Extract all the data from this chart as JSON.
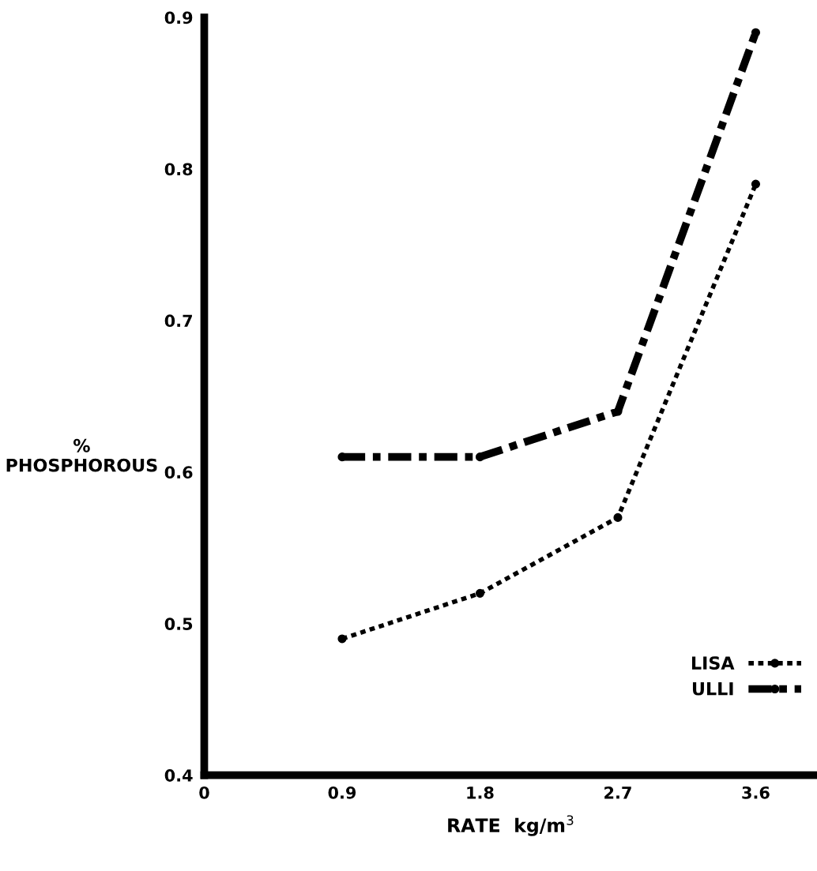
{
  "chart_data": {
    "type": "line",
    "xlabel": "RATE  kg/m$^{3}$",
    "ylabel": "%\nPHOSPHOROUS",
    "x": [
      0.9,
      1.8,
      2.7,
      3.6
    ],
    "xlim": [
      0,
      4.0
    ],
    "xticks": [
      0,
      0.9,
      1.8,
      2.7,
      3.6
    ],
    "ylim": [
      0.4,
      0.9
    ],
    "yticks": [
      0.4,
      0.5,
      0.6,
      0.7,
      0.8,
      0.9
    ],
    "series": [
      {
        "name": "LISA",
        "color": "#000000",
        "values": [
          0.49,
          0.52,
          0.57,
          0.79
        ],
        "line_style": "dashed"
      },
      {
        "name": "ULLI",
        "color": "#000000",
        "values": [
          0.61,
          0.61,
          0.64,
          0.89
        ],
        "line_style": "dashdot"
      }
    ],
    "marker": "circle",
    "grid": false,
    "legend": "bottom right"
  }
}
